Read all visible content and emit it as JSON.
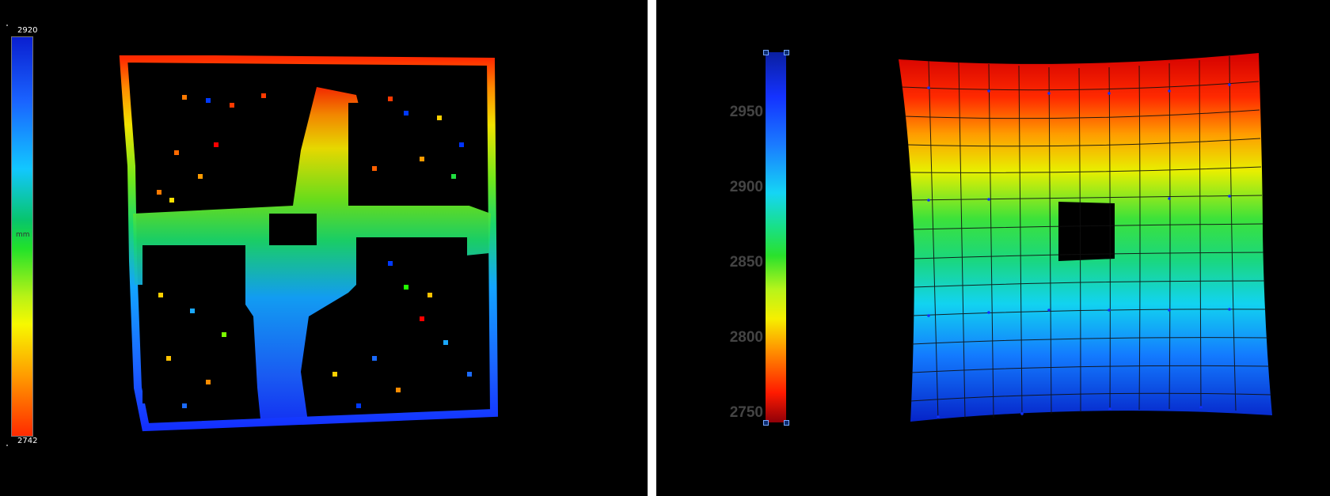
{
  "left_view": {
    "colorbar": {
      "max_label": "2920",
      "min_label": "2742",
      "unit_label": "mm"
    }
  },
  "right_view": {
    "colorbar": {
      "tick_labels": [
        "2950",
        "2900",
        "2850",
        "2800",
        "2750"
      ]
    }
  },
  "colors": {
    "background": "#000000",
    "divider": "#ffffff",
    "selection_handle": "#0b2b6f"
  }
}
